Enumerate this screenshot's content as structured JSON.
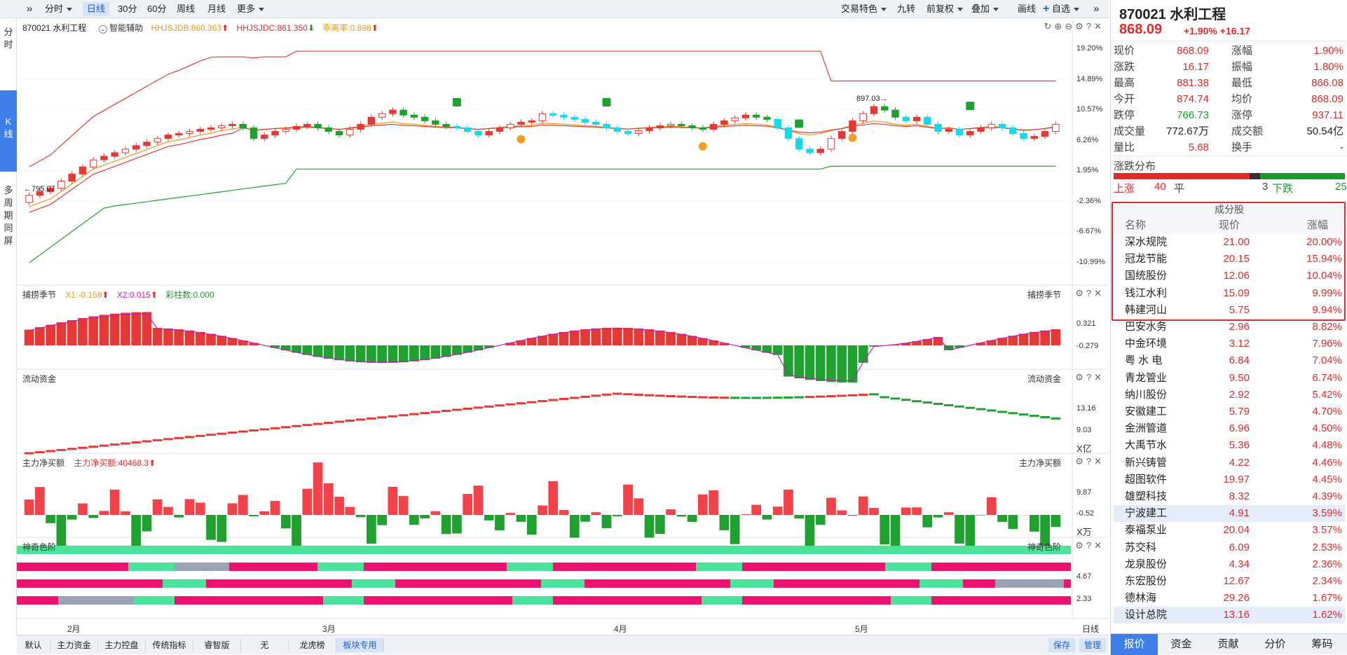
{
  "toolbar": {
    "expand_icon": "»",
    "items": [
      "分时",
      "日线",
      "30分",
      "60分",
      "周线",
      "月线",
      "更多"
    ],
    "right_items": [
      "交易特色",
      "九转",
      "前复权",
      "叠加",
      "画线",
      "自选"
    ]
  },
  "left_tabs": [
    "分时",
    "K线",
    "多周期同屏"
  ],
  "main": {
    "info": {
      "name": "870021 水利工程",
      "assist": "智能辅助",
      "hhjsjdb": "HHJSJDB:860.363",
      "hhjsjdc": "HHJSJDC:861.350",
      "deviation": "乖离率:0.898"
    },
    "price_axis": [
      "19.20%",
      "14.89%",
      "10.57%",
      "6.26%",
      "1.95%",
      "-2.36%",
      "-6.67%",
      "-10.99%"
    ],
    "low_label": "795.07",
    "high_label": "897.03",
    "panels": {
      "p2": {
        "title": "捕捞季节",
        "x1": "X1:-0.159",
        "x2": "X2:0.015",
        "bars": "彩柱数:0.000",
        "axis": [
          "0.321",
          "-0.279"
        ]
      },
      "p3": {
        "title": "流动资金",
        "axis": [
          "13.16",
          "9.03"
        ],
        "unit": "X亿"
      },
      "p4": {
        "title": "主力净买额",
        "value": "主力净买额:40468.3",
        "axis": [
          "9.87",
          "-0.52"
        ],
        "unit": "X万"
      },
      "p5": {
        "title": "神奇色阶",
        "axis": [
          "4.67",
          "2.33"
        ]
      }
    },
    "x_axis": [
      "2月",
      "3月",
      "4月",
      "5月"
    ],
    "period_label": "日线"
  },
  "chart_data": {
    "type": "candlestick",
    "title": "870021 水利工程",
    "x": [
      "2月",
      "3月",
      "4月",
      "5月"
    ],
    "y_axis_percent": [
      "19.20%",
      "14.89%",
      "10.57%",
      "6.26%",
      "1.95%",
      "-2.36%",
      "-6.67%",
      "-10.99%"
    ],
    "low": 795.07,
    "high": 897.03,
    "current": 868.09,
    "indicators": {
      "HHJSJDB": 860.363,
      "HHJSJDC": 861.35,
      "乖离率": 0.898
    },
    "close_pct_series": [
      -1.5,
      -1.0,
      -0.5,
      0.5,
      1.5,
      2.5,
      3.5,
      4.0,
      4.5,
      5.0,
      5.5,
      6.0,
      6.5,
      7.0,
      7.2,
      7.5,
      7.8,
      8.0,
      8.3,
      8.5,
      8.0,
      6.5,
      7.0,
      7.5,
      7.8,
      8.2,
      8.5,
      8.0,
      7.5,
      7.0,
      7.8,
      8.5,
      9.5,
      10.0,
      10.5,
      9.8,
      9.5,
      9.0,
      8.5,
      8.2,
      8.0,
      7.5,
      7.0,
      7.5,
      8.0,
      8.5,
      8.8,
      9.0,
      10.0,
      9.8,
      9.5,
      9.2,
      8.8,
      8.5,
      8.0,
      7.5,
      7.2,
      7.6,
      8.0,
      8.3,
      8.5,
      8.3,
      8.0,
      7.8,
      8.5,
      9.0,
      9.4,
      9.8,
      9.5,
      9.2,
      8.0,
      6.5,
      5.0,
      4.5,
      5.0,
      6.5,
      7.5,
      9.0,
      10.0,
      11.0,
      10.5,
      9.5,
      9.0,
      9.5,
      8.5,
      7.5,
      7.8,
      7.0,
      7.5,
      8.0,
      8.5,
      8.0,
      7.2,
      6.5,
      6.8,
      7.5,
      8.5
    ]
  },
  "right": {
    "title": "870021 水利工程",
    "price": "868.09",
    "change": "+1.90% +16.17",
    "quotes": [
      [
        "现价",
        "868.09",
        "涨幅",
        "1.90%"
      ],
      [
        "涨跌",
        "16.17",
        "振幅",
        "1.80%"
      ],
      [
        "最高",
        "881.38",
        "最低",
        "866.08"
      ],
      [
        "今开",
        "874.74",
        "均价",
        "868.09"
      ],
      [
        "跌停",
        "766.73",
        "涨停",
        "937.11"
      ],
      [
        "成交量",
        "772.67万",
        "成交额",
        "50.54亿"
      ],
      [
        "量比",
        "5.68",
        "换手",
        "-"
      ]
    ],
    "dist": {
      "title": "涨跌分布",
      "up_label": "上涨",
      "up": "40",
      "flat_label": "平",
      "flat": "3",
      "down_label": "下跌",
      "down": "25"
    },
    "constituents": {
      "title": "成分股",
      "headers": [
        "名称",
        "现价",
        "涨幅"
      ],
      "rows": [
        [
          "深水规院",
          "21.00",
          "20.00%"
        ],
        [
          "冠龙节能",
          "20.15",
          "15.94%"
        ],
        [
          "国统股份",
          "12.06",
          "10.04%"
        ],
        [
          "钱江水利",
          "15.09",
          "9.99%"
        ],
        [
          "韩建河山",
          "5.75",
          "9.94%"
        ],
        [
          "巴安水务",
          "2.96",
          "8.82%"
        ],
        [
          "中金环境",
          "3.12",
          "7.96%"
        ],
        [
          "粤 水 电",
          "6.84",
          "7.04%"
        ],
        [
          "青龙管业",
          "9.50",
          "6.74%"
        ],
        [
          "纳川股份",
          "2.92",
          "5.42%"
        ],
        [
          "安徽建工",
          "5.79",
          "4.70%"
        ],
        [
          "金洲管道",
          "6.96",
          "4.50%"
        ],
        [
          "大禹节水",
          "5.36",
          "4.48%"
        ],
        [
          "新兴铸管",
          "4.22",
          "4.46%"
        ],
        [
          "超图软件",
          "19.97",
          "4.45%"
        ],
        [
          "雄塑科技",
          "8.32",
          "4.39%"
        ],
        [
          "宁波建工",
          "4.91",
          "3.59%"
        ],
        [
          "泰福泵业",
          "20.04",
          "3.57%"
        ],
        [
          "苏交科",
          "6.09",
          "2.53%"
        ],
        [
          "龙泉股份",
          "4.34",
          "2.36%"
        ],
        [
          "东宏股份",
          "12.67",
          "2.34%"
        ],
        [
          "德林海",
          "29.26",
          "1.67%"
        ],
        [
          "设计总院",
          "13.16",
          "1.62%"
        ]
      ]
    },
    "tabs": [
      "报价",
      "资金",
      "贡献",
      "分价",
      "筹码"
    ]
  },
  "bottom": {
    "tabs": [
      "默认",
      "主力资金",
      "主力控盘",
      "传统指标",
      "睿智版",
      "无",
      "龙虎榜",
      "板块专用"
    ],
    "save": "保存",
    "manage": "管理"
  }
}
